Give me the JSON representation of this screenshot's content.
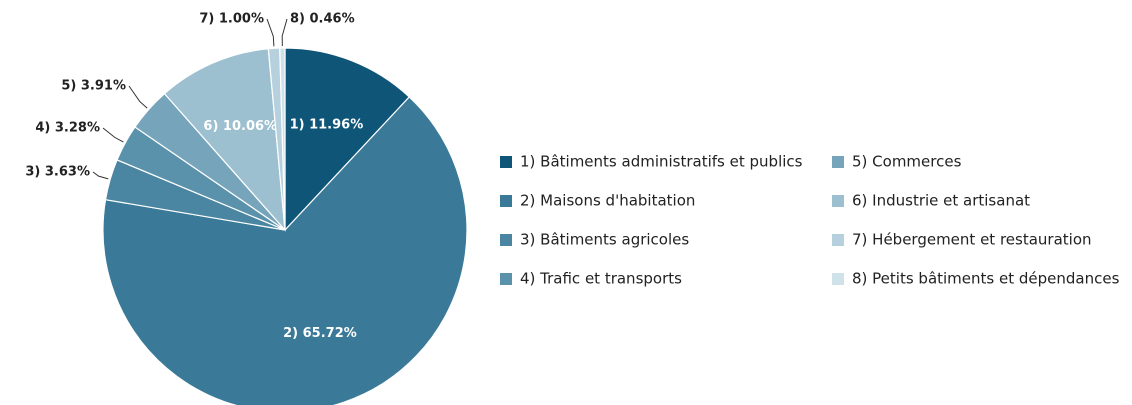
{
  "chart_data": {
    "type": "pie",
    "categories": [
      "1) Bâtiments administratifs et publics",
      "2) Maisons d'habitation",
      "3) Bâtiments agricoles",
      "4) Trafic et transports",
      "5) Commerces",
      "6) Industrie et artisanat",
      "7) Hébergement et restauration",
      "8) Petits bâtiments et dépendances"
    ],
    "values": [
      11.96,
      65.72,
      3.63,
      3.28,
      3.91,
      10.06,
      1.0,
      0.46
    ],
    "value_labels": [
      "1) 11.96%",
      "2) 65.72%",
      "3) 3.63%",
      "4) 3.28%",
      "5) 3.91%",
      "6) 10.06%",
      "7) 1.00%",
      "8) 0.46%"
    ],
    "colors": [
      "#0e5577",
      "#3a7a98",
      "#4a86a2",
      "#5a91ab",
      "#76a5bb",
      "#9dc0d0",
      "#b6d1dd",
      "#cfe1e9"
    ]
  }
}
